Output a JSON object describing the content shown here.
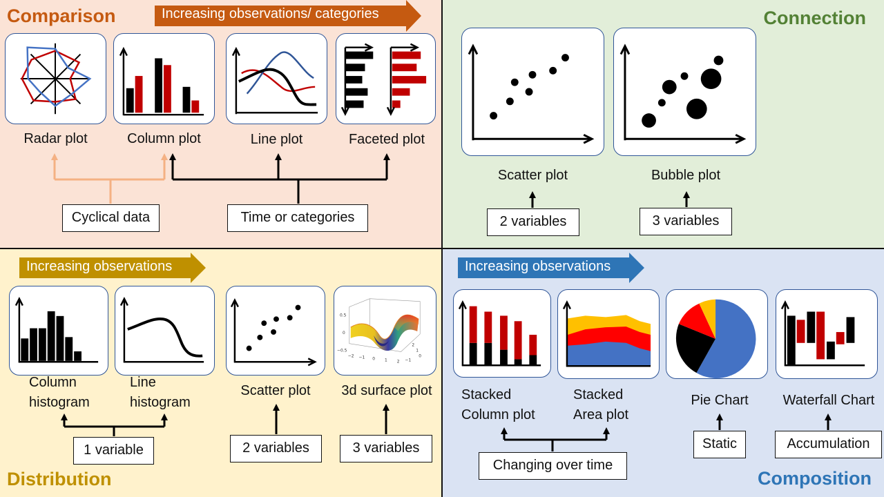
{
  "comparison": {
    "title": "Comparison",
    "arrow": "Increasing observations/ categories",
    "charts": [
      "Radar plot",
      "Column plot",
      "Line plot",
      "Faceted plot"
    ],
    "boxes": [
      "Cyclical data",
      "Time or categories"
    ]
  },
  "connection": {
    "title": "Connection",
    "charts": [
      "Scatter plot",
      "Bubble plot"
    ],
    "boxes": [
      "2 variables",
      "3 variables"
    ]
  },
  "distribution": {
    "title": "Distribution",
    "arrow": "Increasing observations",
    "charts": [
      {
        "line1": "Column",
        "line2": "histogram"
      },
      {
        "line1": "Line",
        "line2": "histogram"
      },
      "Scatter plot",
      "3d surface plot"
    ],
    "boxes": [
      "1 variable",
      "2 variables",
      "3 variables"
    ],
    "surface_ticks": {
      "z": [
        "0.5",
        "0",
        "−0.5"
      ],
      "x": [
        "−2",
        "−1",
        "0",
        "1",
        "2"
      ],
      "y": [
        "2",
        "1",
        "0",
        "−1"
      ]
    }
  },
  "composition": {
    "title": "Composition",
    "arrow": "Increasing observations",
    "charts": [
      {
        "line1": "Stacked",
        "line2": "Column plot"
      },
      {
        "line1": "Stacked",
        "line2": "Area plot"
      },
      "Pie Chart",
      "Waterfall Chart"
    ],
    "boxes": [
      "Changing over time",
      "Static",
      "Accumulation"
    ]
  },
  "colors": {
    "comparison_title": "#c55a11",
    "connection_title": "#538135",
    "distribution_title": "#bf9000",
    "composition_title": "#2e75b6",
    "comparison_arrow": "#c55a11",
    "distribution_arrow": "#bf9000",
    "composition_arrow": "#2e75b6",
    "cyclical_connector": "#f4b183",
    "series_red": "#c00000",
    "series_blue": "#4472c4",
    "series_yellow": "#ffc000"
  }
}
